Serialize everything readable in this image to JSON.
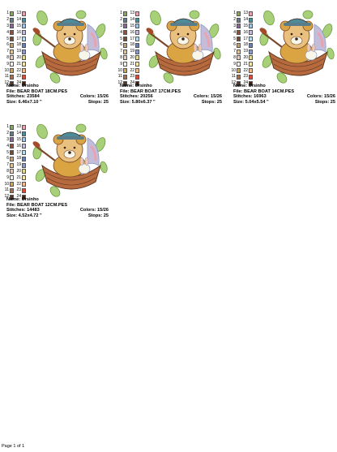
{
  "thread_colors_left": [
    "#7fb04a",
    "#5a7d8c",
    "#8d5fa3",
    "#a64b2a",
    "#7a4a2a",
    "#c99f62",
    "#e9c07d",
    "#f2c6b0",
    "#f8f6e9",
    "#d9a441",
    "#b86a3f",
    "#5a3520"
  ],
  "thread_colors_right": [
    "#e8a3b3",
    "#4d8b9a",
    "#9fc4e6",
    "#c3bdd9",
    "#b9ddf0",
    "#6b7fb0",
    "#8e9ac5",
    "#e2db8f",
    "#f6e6a9",
    "#f3b98f",
    "#d94c3c",
    "#3a2416"
  ],
  "designs": [
    {
      "name_line": "Name: Ursinho",
      "file_line": "File: BEAR BOAT 18CM.PES",
      "stitches_line": "Stitches: 23584",
      "colors_line": "Colors: 15/26",
      "size_line": "Size: 6.46x7.10 \"",
      "stops_line": "Stops: 25"
    },
    {
      "name_line": "Name: Ursinho",
      "file_line": "File: BEAR BOAT 17CM.PES",
      "stitches_line": "Stitches: 20256",
      "colors_line": "Colors: 15/26",
      "size_line": "Size: 5.80x6.37 \"",
      "stops_line": "Stops: 25"
    },
    {
      "name_line": "Name: Ursinho",
      "file_line": "File: BEAR BOAT 14CM.PES",
      "stitches_line": "Stitches: 16963",
      "colors_line": "Colors: 15/26",
      "size_line": "Size: 5.04x5.54 \"",
      "stops_line": "Stops: 25"
    },
    {
      "name_line": "Name: Ursinho",
      "file_line": "File: BEAR BOAT 12CM.PES",
      "stitches_line": "Stitches: 14483",
      "colors_line": "Colors: 15/26",
      "size_line": "Size: 4.52x4.72 \"",
      "stops_line": "Stops: 25"
    }
  ],
  "footer": {
    "page_label": "Page 1 of 1"
  }
}
